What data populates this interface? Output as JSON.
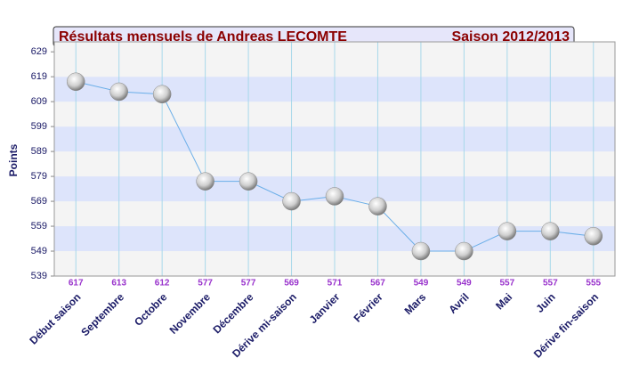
{
  "chart_data": {
    "type": "line",
    "title": "Résultats mensuels de  Andreas LECOMTE",
    "subtitle": "Saison 2012/2013",
    "y_label": "Points",
    "categories": [
      "Début saison",
      "Septembre",
      "Octobre",
      "Novembre",
      "Décembre",
      "Dérive mi-saison",
      "Janvier",
      "Février",
      "Mars",
      "Avril",
      "Mai",
      "Juin",
      "Dérive fin-saison"
    ],
    "values": [
      617,
      613,
      612,
      577,
      577,
      569,
      571,
      567,
      549,
      549,
      557,
      557,
      555
    ],
    "ylim": [
      539,
      633
    ],
    "yticks": [
      539,
      549,
      559,
      569,
      579,
      589,
      599,
      609,
      619,
      629
    ],
    "grid": true,
    "band_colors": [
      "#f4f4f4",
      "#dde4fb"
    ],
    "color": "#6aaee8",
    "value_label_color": "#9933cc"
  }
}
